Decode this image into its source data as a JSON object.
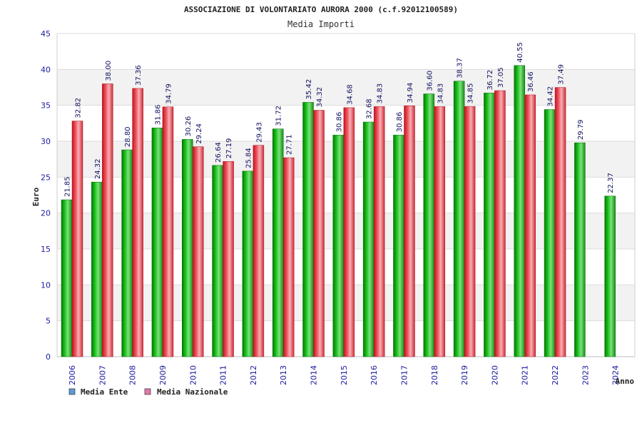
{
  "chart_data": {
    "type": "bar",
    "title": "ASSOCIAZIONE DI VOLONTARIATO AURORA 2000 (c.f.92012100589)",
    "subtitle": "Media Importi",
    "xlabel": "Anno",
    "ylabel": "Euro",
    "ylim": [
      0,
      45
    ],
    "yticks": [
      0,
      5,
      10,
      15,
      20,
      25,
      30,
      35,
      40,
      45
    ],
    "grid": true,
    "legend_position": "bottom-left",
    "categories": [
      "2006",
      "2007",
      "2008",
      "2009",
      "2010",
      "2011",
      "2012",
      "2013",
      "2014",
      "2015",
      "2016",
      "2017",
      "2018",
      "2019",
      "2020",
      "2021",
      "2022",
      "2023",
      "2024"
    ],
    "series": [
      {
        "name": "Media Ente",
        "legend_color": "#5b9bd5",
        "color": "#22b022",
        "values": [
          21.85,
          24.32,
          28.8,
          31.86,
          30.26,
          26.64,
          25.84,
          31.72,
          35.42,
          30.86,
          32.68,
          30.86,
          36.6,
          38.37,
          36.72,
          40.55,
          34.42,
          29.79,
          22.37
        ],
        "labels": [
          "21.85",
          "24.32",
          "28.80",
          "31.86",
          "30.26",
          "26.64",
          "25.84",
          "31.72",
          "35.42",
          "30.86",
          "32.68",
          "30.86",
          "36.60",
          "38.37",
          "36.72",
          "40.55",
          "34.42",
          "29.79",
          "22.37"
        ]
      },
      {
        "name": "Media Nazionale",
        "legend_color": "#e07aa8",
        "color": "#e03a44",
        "values": [
          32.82,
          38.0,
          37.36,
          34.79,
          29.24,
          27.19,
          29.43,
          27.71,
          34.32,
          34.68,
          34.83,
          34.94,
          34.83,
          34.85,
          37.05,
          36.46,
          37.49,
          null,
          null
        ],
        "labels": [
          "32.82",
          "38.00",
          "37.36",
          "34.79",
          "29.24",
          "27.19",
          "29.43",
          "27.71",
          "34.32",
          "34.68",
          "34.83",
          "34.94",
          "34.83",
          "34.85",
          "37.05",
          "36.46",
          "37.49",
          "",
          ""
        ]
      }
    ]
  }
}
